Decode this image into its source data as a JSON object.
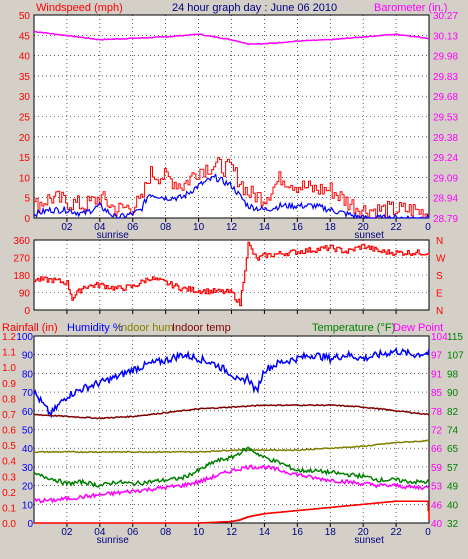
{
  "header": {
    "title": "24 hour graph day : June 06 2010",
    "top_left": "Windspeed (mph)",
    "top_right": "Barometer (in.)",
    "bottom_rain": "Rainfall (in)",
    "bottom_hum": "Humidity %",
    "bottom_ihum": "Indoor hum",
    "bottom_itemp": "Indoor temp",
    "bottom_temp": "Temperature (°F)",
    "bottom_dew": "Dew Point"
  },
  "colors": {
    "background": "#d4d0c8",
    "plot_bg": "#ffffff",
    "grid": "#000000",
    "wind_gust": "#ff0000",
    "wind_avg": "#0000ff",
    "barometer": "#ff00ff",
    "wind_dir": "#ff0000",
    "humidity": "#0000ff",
    "indoor_hum": "#808000",
    "indoor_temp": "#800000",
    "temperature": "#008000",
    "dew_point": "#ff00ff",
    "rainfall": "#ff0000",
    "title_blue": "#000080",
    "axis_green": "#008000"
  },
  "x_axis": {
    "tick_labels": [
      "02",
      "04",
      "06",
      "08",
      "10",
      "12",
      "14",
      "16",
      "18",
      "20",
      "22"
    ],
    "end_label": "0",
    "sunrise_label": "sunrise",
    "sunset_label": "sunset"
  },
  "chart_data": [
    {
      "type": "line",
      "panel": "wind-barometer",
      "left_axis": {
        "label": "Windspeed (mph)",
        "ticks": [
          "50",
          "45",
          "40",
          "35",
          "30",
          "25",
          "20",
          "15",
          "10",
          "5",
          "0"
        ],
        "ylim": [
          0,
          50
        ]
      },
      "right_axis": {
        "label": "Barometer (in.)",
        "ticks": [
          "30.27",
          "30.13",
          "29.98",
          "29.83",
          "29.68",
          "29.53",
          "29.38",
          "29.24",
          "29.09",
          "28.94",
          "28.79"
        ],
        "ylim": [
          28.79,
          30.27
        ]
      },
      "series": [
        {
          "name": "Barometer (in.)",
          "axis": "right",
          "x": [
            0,
            2,
            4,
            6,
            8,
            10,
            12,
            13,
            14,
            16,
            18,
            20,
            22,
            24
          ],
          "y": [
            30.15,
            30.12,
            30.09,
            30.1,
            30.11,
            30.13,
            30.09,
            30.06,
            30.06,
            30.08,
            30.09,
            30.11,
            30.13,
            30.1
          ]
        },
        {
          "name": "Wind gust",
          "axis": "left",
          "x": [
            0,
            1,
            2,
            3,
            4,
            5,
            6,
            6.5,
            7,
            8,
            9,
            10,
            11,
            12,
            13,
            14,
            15,
            16,
            17,
            18,
            19,
            20,
            21,
            22,
            23,
            24
          ],
          "y": [
            3,
            5,
            4,
            3,
            5,
            2,
            3,
            4,
            11,
            10,
            8,
            12,
            13,
            12,
            6,
            5,
            10,
            8,
            7,
            7,
            4,
            2,
            2,
            2,
            2,
            1
          ]
        },
        {
          "name": "Wind avg",
          "axis": "left",
          "x": [
            0,
            1,
            2,
            3,
            4,
            5,
            6,
            6.5,
            7,
            8,
            9,
            10,
            11,
            12,
            13,
            14,
            15,
            16,
            17,
            18,
            19,
            20,
            21,
            22,
            23,
            24
          ],
          "y": [
            1,
            2,
            2,
            1,
            3,
            0,
            1,
            2,
            6,
            5,
            5,
            8,
            10,
            8,
            3,
            2,
            3,
            3,
            3,
            2,
            1,
            0,
            0,
            0,
            0,
            0
          ]
        }
      ]
    },
    {
      "type": "line",
      "panel": "wind-direction",
      "left_axis": {
        "ticks": [
          "360",
          "270",
          "180",
          "90",
          "0"
        ],
        "ylim": [
          0,
          360
        ]
      },
      "right_axis": {
        "ticks": [
          "N",
          "W",
          "S",
          "E",
          "N"
        ]
      },
      "series": [
        {
          "name": "Wind direction",
          "x": [
            0,
            1,
            2,
            2.3,
            3,
            4,
            5,
            6,
            7,
            8,
            9,
            10,
            11,
            12,
            12.5,
            13,
            13.5,
            14,
            15,
            16,
            17,
            18,
            19,
            20,
            21,
            22,
            23,
            24
          ],
          "y": [
            155,
            155,
            140,
            60,
            120,
            130,
            110,
            120,
            165,
            140,
            110,
            100,
            95,
            90,
            30,
            340,
            260,
            280,
            290,
            300,
            310,
            320,
            300,
            330,
            300,
            295,
            295,
            295
          ]
        }
      ]
    },
    {
      "type": "line",
      "panel": "temp-humidity",
      "left_axes": [
        {
          "label": "Rainfall (in)",
          "ticks": [
            "1.2",
            "1.1",
            "1.0",
            "0.9",
            "0.8",
            "0.7",
            "0.6",
            "0.5",
            "0.4",
            "0.3",
            "0.2",
            "0.1",
            "0.0"
          ],
          "ylim": [
            0,
            1.2
          ]
        },
        {
          "label": "Humidity %",
          "ticks": [
            "100",
            "90",
            "80",
            "70",
            "60",
            "50",
            "40",
            "30",
            "20",
            "10",
            "0"
          ],
          "ylim": [
            0,
            100
          ]
        }
      ],
      "right_axes": [
        {
          "label": "Temperature (°F)",
          "ticks": [
            "115",
            "107",
            "98",
            "90",
            "82",
            "74",
            "65",
            "57",
            "49",
            "40",
            "32"
          ],
          "ylim": [
            32,
            115
          ]
        },
        {
          "label": "Dew Point",
          "ticks": [
            "104",
            "97",
            "91",
            "85",
            "78",
            "72",
            "66",
            "59",
            "53",
            "46",
            "40"
          ],
          "ylim": [
            40,
            104
          ]
        }
      ],
      "series": [
        {
          "name": "Humidity %",
          "axis": "humidity",
          "x": [
            0,
            1,
            2,
            3,
            4,
            5,
            6,
            7,
            8,
            9,
            10,
            11,
            12,
            12.5,
            13,
            13.5,
            14,
            15,
            16,
            17,
            18,
            19,
            20,
            21,
            22,
            23,
            24
          ],
          "y": [
            70,
            58,
            68,
            72,
            75,
            78,
            82,
            85,
            87,
            90,
            88,
            85,
            80,
            75,
            78,
            70,
            82,
            86,
            88,
            90,
            88,
            90,
            88,
            90,
            92,
            90,
            91
          ]
        },
        {
          "name": "Indoor temp",
          "axis": "humidity",
          "x": [
            0,
            2,
            4,
            6,
            8,
            10,
            12,
            14,
            16,
            18,
            20,
            22,
            24
          ],
          "y": [
            58,
            57,
            56,
            57,
            59,
            61,
            62,
            63,
            63,
            63,
            62,
            60,
            58
          ]
        },
        {
          "name": "Indoor hum",
          "axis": "humidity",
          "x": [
            0,
            2,
            4,
            6,
            8,
            10,
            12,
            14,
            16,
            18,
            20,
            22,
            24
          ],
          "y": [
            38,
            38,
            38,
            38,
            38,
            38,
            39,
            39,
            39,
            40,
            41,
            43,
            44
          ]
        },
        {
          "name": "Temperature (°F)",
          "axis": "humidity",
          "x": [
            0,
            1,
            2,
            3,
            4,
            5,
            6,
            7,
            8,
            9,
            10,
            11,
            12,
            13,
            14,
            15,
            16,
            17,
            18,
            19,
            20,
            21,
            22,
            23,
            24
          ],
          "y": [
            26,
            24,
            21,
            22,
            20,
            22,
            21,
            22,
            23,
            24,
            28,
            33,
            35,
            40,
            35,
            32,
            28,
            28,
            27,
            26,
            25,
            23,
            23,
            22,
            22
          ]
        },
        {
          "name": "Dew Point",
          "axis": "humidity",
          "x": [
            0,
            1,
            2,
            3,
            4,
            5,
            6,
            7,
            8,
            9,
            10,
            11,
            12,
            13,
            14,
            15,
            16,
            17,
            18,
            19,
            20,
            21,
            22,
            23,
            24
          ],
          "y": [
            12,
            12,
            13,
            14,
            15,
            16,
            17,
            18,
            19,
            20,
            22,
            25,
            28,
            30,
            30,
            28,
            26,
            24,
            23,
            22,
            21,
            20,
            20,
            19,
            19
          ]
        },
        {
          "name": "Rainfall (in)",
          "axis": "rain",
          "x": [
            0,
            10,
            12,
            12.5,
            13,
            14,
            16,
            18,
            20,
            22,
            23.9,
            24
          ],
          "y": [
            0,
            0,
            0.01,
            0.02,
            0.04,
            0.06,
            0.08,
            0.1,
            0.12,
            0.14,
            0.14,
            0.02
          ]
        }
      ]
    }
  ]
}
